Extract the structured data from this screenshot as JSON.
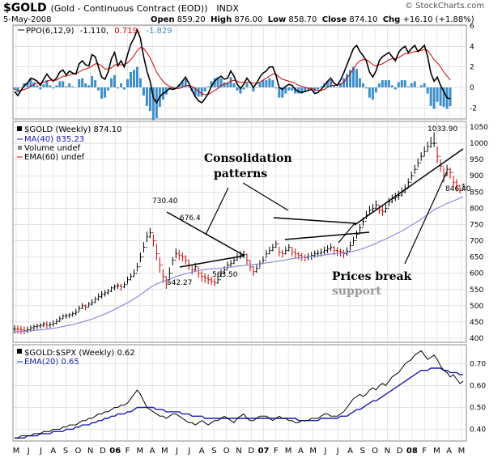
{
  "header": {
    "symbol": "$GOLD",
    "description": "(Gold - Continuous Contract (EOD))",
    "exchange": "INDX",
    "date": "5-May-2008",
    "open_label": "Open",
    "open": "859.20",
    "high_label": "High",
    "high": "876.00",
    "low_label": "Low",
    "low": "858.70",
    "close_label": "Close",
    "close": "874.10",
    "chg_label": "Chg",
    "chg": "+16.10 (+1.88%)",
    "brand": "© StockCharts.com"
  },
  "colors": {
    "price_up": "#000000",
    "price_down": "#cc0000",
    "ma40": "#8c8cd8",
    "ppo_line": "#000000",
    "ppo_signal": "#cc0000",
    "histogram": "#3d8fcc",
    "ratio_line": "#000000",
    "ratio_ema": "#1a1ab0",
    "grid": "#cfcfcf"
  },
  "ppo_panel": {
    "legend": {
      "name": "PPO(6,12,9)",
      "ppo": "-1.110,",
      "signal": "0.719,",
      "hist": "-1.829"
    },
    "y_ticks": [
      "6",
      "4",
      "2",
      "0",
      "-2"
    ]
  },
  "price_panel": {
    "legend": {
      "title": "$GOLD (Weekly) 874.10",
      "ma": "MA(40) 835.23",
      "volume": "Volume undef",
      "ema": "EMA(60) undef"
    },
    "y_ticks": [
      "1050",
      "1000",
      "950",
      "900",
      "850",
      "800",
      "750",
      "700",
      "650",
      "600",
      "550",
      "500",
      "450",
      "400"
    ],
    "point_labels": [
      "730.40",
      "676.4",
      "542.27",
      "563.50",
      "1033.90",
      "846.40"
    ],
    "annotations": {
      "consolidation_line1": "Consolidation",
      "consolidation_line2": "patterns",
      "break_line1": "Prices break",
      "break_line2": "support"
    }
  },
  "ratio_panel": {
    "legend": {
      "title": "$GOLD:$SPX (Weekly) 0.62",
      "ema": "EMA(20) 0.65"
    },
    "y_ticks": [
      "0.70",
      "0.60",
      "0.50",
      "0.40"
    ]
  },
  "x_axis": {
    "labels": [
      "M",
      "J",
      "J",
      "A",
      "S",
      "O",
      "N",
      "D",
      "06",
      "F",
      "M",
      "A",
      "M",
      "J",
      "J",
      "A",
      "S",
      "O",
      "N",
      "D",
      "07",
      "F",
      "M",
      "A",
      "M",
      "J",
      "J",
      "A",
      "S",
      "O",
      "N",
      "D",
      "08",
      "F",
      "M",
      "A",
      "M"
    ]
  },
  "chart_data": {
    "type": "line",
    "title": "$GOLD (Weekly) 874.10",
    "period": "weekly, May 2005 – May 2008",
    "price": {
      "name": "$GOLD",
      "ylim": [
        400,
        1060
      ],
      "weekly_close": [
        428,
        427,
        425,
        424,
        426,
        432,
        436,
        438,
        440,
        444,
        440,
        442,
        446,
        452,
        460,
        468,
        470,
        472,
        476,
        480,
        492,
        500,
        496,
        505,
        510,
        520,
        528,
        535,
        540,
        545,
        555,
        560,
        562,
        558,
        565,
        580,
        590,
        600,
        620,
        650,
        680,
        712,
        725,
        700,
        660,
        625,
        590,
        570,
        600,
        640,
        660,
        655,
        650,
        640,
        625,
        610,
        620,
        600,
        590,
        585,
        580,
        575,
        570,
        580,
        600,
        610,
        625,
        630,
        640,
        650,
        655,
        658,
        640,
        620,
        605,
        615,
        630,
        640,
        660,
        670,
        680,
        690,
        665,
        660,
        670,
        680,
        665,
        660,
        655,
        650,
        648,
        652,
        655,
        660,
        662,
        665,
        670,
        675,
        680,
        670,
        668,
        665,
        660,
        668,
        685,
        700,
        720,
        740,
        760,
        780,
        795,
        800,
        810,
        795,
        790,
        800,
        820,
        830,
        835,
        840,
        850,
        860,
        880,
        900,
        920,
        940,
        960,
        975,
        990,
        1000,
        1000,
        960,
        930,
        900,
        920,
        910,
        880,
        870,
        855,
        874
      ],
      "weekly_high": [
        440,
        440,
        438,
        436,
        436,
        440,
        442,
        444,
        446,
        450,
        452,
        450,
        456,
        460,
        468,
        474,
        476,
        478,
        482,
        490,
        500,
        508,
        504,
        512,
        520,
        528,
        538,
        545,
        548,
        552,
        560,
        566,
        570,
        568,
        574,
        590,
        600,
        612,
        632,
        664,
        696,
        728,
        740,
        720,
        690,
        650,
        612,
        590,
        618,
        650,
        676,
        672,
        664,
        656,
        640,
        624,
        632,
        618,
        606,
        600,
        596,
        590,
        586,
        594,
        612,
        622,
        636,
        642,
        650,
        662,
        668,
        670,
        660,
        640,
        622,
        628,
        640,
        652,
        672,
        682,
        690,
        700,
        682,
        672,
        682,
        690,
        680,
        676,
        666,
        662,
        658,
        662,
        666,
        670,
        672,
        676,
        682,
        686,
        692,
        684,
        680,
        676,
        672,
        680,
        698,
        712,
        732,
        752,
        772,
        792,
        808,
        814,
        824,
        810,
        806,
        814,
        832,
        842,
        848,
        854,
        864,
        874,
        892,
        912,
        934,
        954,
        972,
        990,
        1005,
        1020,
        1033.9,
        990,
        950,
        925,
        934,
        925,
        900,
        890,
        870,
        876
      ],
      "weekly_low": [
        415,
        414,
        412,
        412,
        416,
        420,
        425,
        428,
        430,
        434,
        430,
        432,
        436,
        442,
        450,
        458,
        460,
        462,
        466,
        470,
        482,
        490,
        486,
        495,
        500,
        508,
        516,
        522,
        528,
        534,
        542,
        548,
        552,
        546,
        554,
        568,
        578,
        588,
        606,
        634,
        664,
        696,
        708,
        682,
        640,
        602,
        570,
        552,
        580,
        624,
        646,
        640,
        636,
        628,
        610,
        596,
        606,
        586,
        574,
        570,
        566,
        563.5,
        560,
        568,
        588,
        598,
        612,
        618,
        628,
        638,
        644,
        646,
        626,
        606,
        592,
        602,
        618,
        628,
        646,
        658,
        668,
        678,
        652,
        648,
        658,
        668,
        652,
        646,
        642,
        638,
        636,
        640,
        642,
        648,
        650,
        652,
        658,
        662,
        668,
        656,
        654,
        652,
        646,
        654,
        670,
        688,
        706,
        726,
        746,
        766,
        782,
        786,
        796,
        782,
        776,
        786,
        806,
        816,
        822,
        826,
        836,
        846,
        866,
        886,
        906,
        926,
        946,
        960,
        974,
        986,
        988,
        940,
        912,
        880,
        900,
        892,
        864,
        852,
        846.4,
        858.7
      ]
    },
    "ma40": {
      "name": "MA(40)",
      "weekly": [
        420,
        420,
        421,
        421,
        422,
        423,
        424,
        425,
        426,
        427,
        428,
        429,
        431,
        432,
        434,
        436,
        438,
        440,
        442,
        444,
        447,
        450,
        453,
        456,
        459,
        463,
        467,
        471,
        475,
        479,
        484,
        489,
        494,
        499,
        504,
        509,
        515,
        521,
        527,
        534,
        541,
        549,
        556,
        562,
        567,
        571,
        575,
        578,
        582,
        586,
        590,
        593,
        596,
        599,
        601,
        603,
        606,
        608,
        610,
        612,
        613,
        614,
        614,
        615,
        616,
        617,
        618,
        619,
        620,
        622,
        623,
        624,
        625,
        626,
        627,
        628,
        629,
        630,
        632,
        633,
        635,
        636,
        638,
        639,
        641,
        643,
        645,
        646,
        648,
        649,
        650,
        651,
        652,
        653,
        654,
        655,
        656,
        658,
        659,
        660,
        661,
        662,
        663,
        664,
        666,
        668,
        670,
        673,
        676,
        680,
        684,
        688,
        692,
        697,
        701,
        705,
        710,
        715,
        720,
        725,
        730,
        736,
        742,
        748,
        754,
        760,
        767,
        774,
        781,
        788,
        795,
        800,
        805,
        810,
        815,
        819,
        823,
        827,
        831,
        835.23
      ]
    },
    "ppo": {
      "name": "PPO(6,12,9)",
      "ylim": [
        -3,
        6
      ],
      "line": [
        -0.4,
        -0.8,
        -0.3,
        0.2,
        0.4,
        0.9,
        0.8,
        0.6,
        0.2,
        0.8,
        1.3,
        0.9,
        0.6,
        0.9,
        1.5,
        1.7,
        1.2,
        1.6,
        1.4,
        1.3,
        2.3,
        2.6,
        2.2,
        2.1,
        3.2,
        3.0,
        2.0,
        1.0,
        0.8,
        1.5,
        2.8,
        3.4,
        2.1,
        2.6,
        2.0,
        3.2,
        4.2,
        4.8,
        5.6,
        4.8,
        3.0,
        1.6,
        0.6,
        -1.0,
        -1.5,
        -0.9,
        -0.6,
        -0.4,
        -0.1,
        -0.2,
        -0.1,
        0.2,
        0.6,
        1.0,
        0.4,
        -0.3,
        -0.9,
        -1.3,
        -1.5,
        -1.1,
        -0.6,
        0.1,
        0.6,
        0.9,
        1.1,
        0.8,
        0.9,
        1.6,
        1.1,
        0.3,
        -0.1,
        0.3,
        0.9,
        0.5,
        0.0,
        0.4,
        1.0,
        1.4,
        1.6,
        2.0,
        2.0,
        1.2,
        0.0,
        -0.2,
        0.1,
        0.3,
        0.2,
        -0.2,
        -0.4,
        -0.5,
        -0.4,
        -0.3,
        -0.2,
        -0.6,
        -0.5,
        -0.2,
        0.2,
        0.6,
        0.9,
        0.4,
        0.2,
        0.7,
        1.4,
        2.2,
        3.0,
        3.8,
        4.1,
        3.5,
        3.1,
        2.6,
        1.5,
        1.0,
        1.6,
        2.6,
        3.0,
        3.2,
        3.4,
        3.0,
        2.6,
        3.4,
        3.8,
        4.0,
        3.4,
        3.8,
        4.1,
        3.5,
        3.8,
        4.1,
        3.0,
        1.4,
        0.6,
        1.0,
        0.2,
        -0.4,
        -1.0,
        -1.11
      ],
      "signal": [
        -0.2,
        -0.3,
        -0.3,
        -0.2,
        -0.1,
        0.1,
        0.3,
        0.4,
        0.4,
        0.5,
        0.6,
        0.7,
        0.7,
        0.7,
        0.9,
        1.1,
        1.1,
        1.2,
        1.3,
        1.3,
        1.5,
        1.7,
        1.8,
        1.9,
        2.1,
        2.3,
        2.3,
        2.1,
        1.8,
        1.8,
        1.9,
        2.2,
        2.2,
        2.2,
        2.2,
        2.4,
        2.7,
        3.1,
        3.6,
        3.9,
        3.8,
        3.4,
        2.9,
        2.2,
        1.5,
        1.0,
        0.6,
        0.3,
        0.1,
        0.0,
        -0.1,
        -0.1,
        0.0,
        0.2,
        0.2,
        0.1,
        -0.1,
        -0.4,
        -0.6,
        -0.7,
        -0.7,
        -0.5,
        -0.3,
        -0.1,
        0.2,
        0.3,
        0.4,
        0.6,
        0.7,
        0.6,
        0.5,
        0.5,
        0.5,
        0.5,
        0.4,
        0.4,
        0.5,
        0.7,
        0.9,
        1.1,
        1.3,
        1.3,
        1.0,
        0.8,
        0.7,
        0.6,
        0.5,
        0.4,
        0.2,
        0.1,
        0.0,
        -0.1,
        -0.1,
        -0.2,
        -0.3,
        -0.3,
        -0.2,
        0.0,
        0.2,
        0.2,
        0.2,
        0.3,
        0.5,
        0.9,
        1.3,
        1.8,
        2.3,
        2.6,
        2.7,
        2.7,
        2.5,
        2.2,
        2.1,
        2.2,
        2.3,
        2.5,
        2.7,
        2.8,
        2.8,
        2.9,
        3.1,
        3.3,
        3.3,
        3.4,
        3.5,
        3.5,
        3.6,
        3.7,
        3.6,
        3.2,
        2.7,
        2.4,
        2.0,
        1.5,
        1.1,
        0.719
      ]
    },
    "ratio": {
      "name": "$GOLD:$SPX (Weekly)",
      "ylim": [
        0.35,
        0.78
      ],
      "line": [
        0.36,
        0.36,
        0.37,
        0.37,
        0.37,
        0.37,
        0.38,
        0.38,
        0.38,
        0.39,
        0.39,
        0.39,
        0.4,
        0.4,
        0.4,
        0.41,
        0.41,
        0.42,
        0.42,
        0.42,
        0.43,
        0.44,
        0.44,
        0.45,
        0.45,
        0.46,
        0.47,
        0.47,
        0.48,
        0.48,
        0.49,
        0.5,
        0.5,
        0.51,
        0.51,
        0.52,
        0.54,
        0.56,
        0.58,
        0.56,
        0.53,
        0.5,
        0.49,
        0.48,
        0.47,
        0.46,
        0.46,
        0.45,
        0.46,
        0.47,
        0.47,
        0.46,
        0.45,
        0.44,
        0.43,
        0.43,
        0.42,
        0.43,
        0.44,
        0.43,
        0.42,
        0.43,
        0.44,
        0.44,
        0.45,
        0.46,
        0.45,
        0.44,
        0.43,
        0.45,
        0.46,
        0.47,
        0.45,
        0.44,
        0.44,
        0.45,
        0.46,
        0.46,
        0.46,
        0.45,
        0.44,
        0.45,
        0.46,
        0.45,
        0.45,
        0.44,
        0.44,
        0.43,
        0.43,
        0.44,
        0.44,
        0.44,
        0.45,
        0.45,
        0.45,
        0.46,
        0.47,
        0.47,
        0.46,
        0.46,
        0.46,
        0.47,
        0.48,
        0.5,
        0.52,
        0.54,
        0.55,
        0.56,
        0.55,
        0.56,
        0.58,
        0.59,
        0.58,
        0.6,
        0.61,
        0.6,
        0.62,
        0.64,
        0.65,
        0.66,
        0.68,
        0.7,
        0.71,
        0.72,
        0.74,
        0.75,
        0.76,
        0.74,
        0.72,
        0.73,
        0.74,
        0.72,
        0.69,
        0.67,
        0.66,
        0.64,
        0.65,
        0.63,
        0.61,
        0.62
      ],
      "ema20": [
        0.36,
        0.36,
        0.36,
        0.36,
        0.37,
        0.37,
        0.37,
        0.37,
        0.38,
        0.38,
        0.38,
        0.38,
        0.39,
        0.39,
        0.39,
        0.39,
        0.4,
        0.4,
        0.4,
        0.41,
        0.41,
        0.42,
        0.42,
        0.42,
        0.43,
        0.43,
        0.44,
        0.44,
        0.45,
        0.45,
        0.46,
        0.46,
        0.47,
        0.47,
        0.47,
        0.48,
        0.48,
        0.49,
        0.5,
        0.5,
        0.5,
        0.5,
        0.5,
        0.5,
        0.49,
        0.49,
        0.49,
        0.48,
        0.48,
        0.48,
        0.48,
        0.48,
        0.47,
        0.47,
        0.47,
        0.46,
        0.46,
        0.46,
        0.46,
        0.45,
        0.45,
        0.45,
        0.45,
        0.45,
        0.45,
        0.45,
        0.45,
        0.45,
        0.45,
        0.45,
        0.45,
        0.45,
        0.45,
        0.45,
        0.45,
        0.45,
        0.45,
        0.45,
        0.45,
        0.45,
        0.45,
        0.45,
        0.45,
        0.45,
        0.45,
        0.45,
        0.45,
        0.45,
        0.44,
        0.44,
        0.44,
        0.44,
        0.44,
        0.44,
        0.44,
        0.45,
        0.45,
        0.45,
        0.45,
        0.45,
        0.45,
        0.46,
        0.46,
        0.46,
        0.47,
        0.48,
        0.49,
        0.49,
        0.5,
        0.51,
        0.52,
        0.53,
        0.53,
        0.54,
        0.55,
        0.56,
        0.57,
        0.58,
        0.59,
        0.6,
        0.61,
        0.62,
        0.63,
        0.64,
        0.65,
        0.66,
        0.67,
        0.67,
        0.67,
        0.68,
        0.68,
        0.68,
        0.68,
        0.67,
        0.67,
        0.66,
        0.66,
        0.66,
        0.65,
        0.65
      ]
    }
  }
}
